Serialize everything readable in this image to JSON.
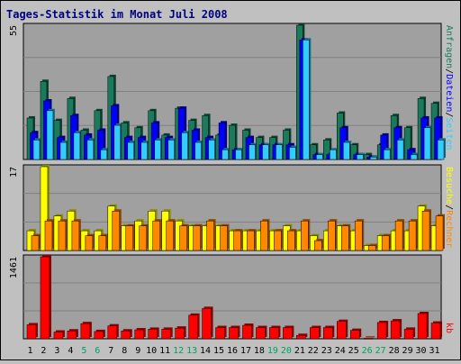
{
  "title": "Tages-Statistik im Monat Juli 2008",
  "colors": {
    "background": "#C0C0C0",
    "plot_bg": "#A0A0A0",
    "title": "#000080",
    "anfragen": "#1A7A5C",
    "dateien": "#0000FF",
    "seiten": "#33CCFF",
    "besuche": "#FFFF00",
    "rechner": "#FF8800",
    "kb": "#FF0000",
    "weekend_label": "#00A060",
    "weekday_label": "#000000"
  },
  "chart_data": [
    {
      "type": "bar",
      "title": "",
      "ymax_label": "55",
      "ylim": [
        0,
        55
      ],
      "legend": [
        "Anfragen",
        "/",
        "Dateien",
        "/",
        "Seiten"
      ],
      "categories": [
        "1",
        "2",
        "3",
        "4",
        "5",
        "6",
        "7",
        "8",
        "9",
        "10",
        "11",
        "12",
        "13",
        "14",
        "15",
        "16",
        "17",
        "18",
        "19",
        "20",
        "21",
        "22",
        "23",
        "24",
        "25",
        "26",
        "27",
        "28",
        "29",
        "30",
        "31"
      ],
      "series": [
        {
          "name": "Anfragen",
          "values": [
            17,
            32,
            16,
            25,
            12,
            20,
            34,
            15,
            13,
            20,
            10,
            21,
            16,
            18,
            10,
            14,
            12,
            9,
            9,
            12,
            55,
            6,
            8,
            19,
            6,
            2,
            6,
            18,
            13,
            25,
            23
          ]
        },
        {
          "name": "Dateien",
          "values": [
            11,
            24,
            9,
            18,
            10,
            12,
            22,
            9,
            9,
            15,
            9,
            21,
            12,
            9,
            15,
            4,
            9,
            6,
            6,
            6,
            49,
            2,
            2,
            13,
            2,
            1,
            10,
            13,
            4,
            17,
            17
          ]
        },
        {
          "name": "Seiten",
          "values": [
            8,
            20,
            7,
            11,
            8,
            4,
            14,
            7,
            7,
            8,
            8,
            11,
            7,
            8,
            4,
            4,
            6,
            6,
            6,
            5,
            49,
            2,
            4,
            7,
            2,
            1,
            4,
            8,
            2,
            13,
            8
          ]
        }
      ]
    },
    {
      "type": "bar",
      "title": "",
      "ymax_label": "17",
      "ylim": [
        0,
        17
      ],
      "legend": [
        "Besuche",
        "/",
        "Rechner"
      ],
      "categories": [
        "1",
        "2",
        "3",
        "4",
        "5",
        "6",
        "7",
        "8",
        "9",
        "10",
        "11",
        "12",
        "13",
        "14",
        "15",
        "16",
        "17",
        "18",
        "19",
        "20",
        "21",
        "22",
        "23",
        "24",
        "25",
        "26",
        "27",
        "28",
        "29",
        "30",
        "31"
      ],
      "series": [
        {
          "name": "Besuche",
          "values": [
            4,
            17,
            7,
            8,
            4,
            4,
            9,
            5,
            6,
            8,
            8,
            6,
            5,
            5,
            5,
            4,
            4,
            4,
            4,
            5,
            4,
            3,
            4,
            5,
            4,
            1,
            3,
            4,
            4,
            9,
            5
          ]
        },
        {
          "name": "Rechner",
          "values": [
            3,
            6,
            6,
            6,
            3,
            3,
            8,
            5,
            5,
            6,
            6,
            5,
            5,
            6,
            5,
            4,
            4,
            6,
            4,
            4,
            6,
            2,
            6,
            5,
            6,
            1,
            3,
            6,
            6,
            8,
            7
          ]
        }
      ]
    },
    {
      "type": "bar",
      "title": "",
      "ymax_label": "1461",
      "ylim": [
        0,
        1461
      ],
      "legend": [
        "kb"
      ],
      "categories": [
        "1",
        "2",
        "3",
        "4",
        "5",
        "6",
        "7",
        "8",
        "9",
        "10",
        "11",
        "12",
        "13",
        "14",
        "15",
        "16",
        "17",
        "18",
        "19",
        "20",
        "21",
        "22",
        "23",
        "24",
        "25",
        "26",
        "27",
        "28",
        "29",
        "30",
        "31"
      ],
      "weekend_days": [
        "5",
        "6",
        "12",
        "13",
        "19",
        "20",
        "26",
        "27"
      ],
      "series": [
        {
          "name": "kb",
          "values": [
            250,
            1461,
            120,
            140,
            270,
            130,
            230,
            140,
            160,
            170,
            170,
            190,
            420,
            540,
            200,
            200,
            240,
            200,
            200,
            200,
            60,
            200,
            200,
            310,
            150,
            10,
            290,
            320,
            170,
            450,
            280
          ]
        }
      ]
    }
  ]
}
